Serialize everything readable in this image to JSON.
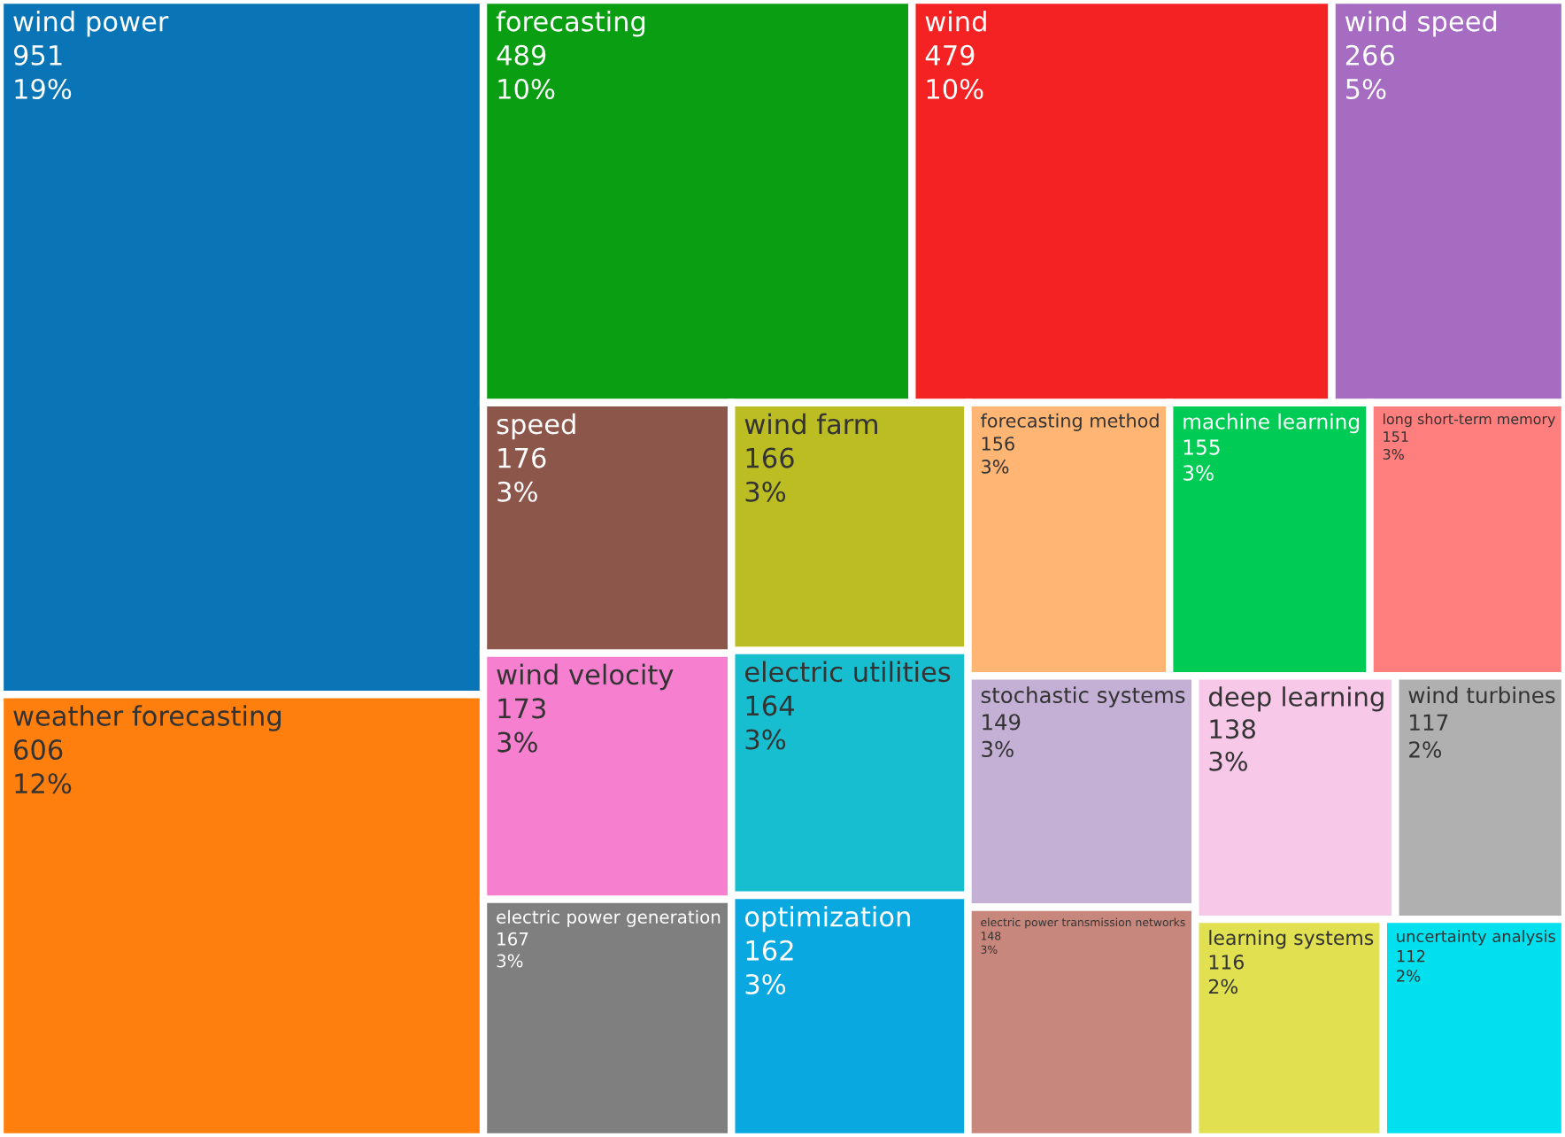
{
  "chart_data": {
    "type": "other",
    "categories": [
      "wind power",
      "weather forecasting",
      "forecasting",
      "wind",
      "wind speed",
      "speed",
      "wind velocity",
      "electric power generation",
      "wind farm",
      "electric utilities",
      "optimization",
      "forecasting method",
      "machine learning",
      "long short-term memory",
      "stochastic systems",
      "electric power transmission networks",
      "deep learning",
      "wind turbines",
      "learning systems",
      "uncertainty analysis"
    ],
    "values": [
      951,
      606,
      489,
      479,
      266,
      176,
      173,
      167,
      166,
      164,
      162,
      156,
      155,
      151,
      149,
      148,
      138,
      117,
      116,
      112
    ],
    "annotations": [
      "19%",
      "12%",
      "10%",
      "10%",
      "5%",
      "3%",
      "3%",
      "3%",
      "3%",
      "3%",
      "3%",
      "3%",
      "3%",
      "3%",
      "3%",
      "3%",
      "3%",
      "2%",
      "2%",
      "2%"
    ],
    "data_labels": true,
    "colors": [
      "#0a75b6",
      "#ff7f0e",
      "#0a9e12",
      "#f42222",
      "#a56cc1",
      "#8c564b",
      "#f77fcf",
      "#7f7f7f",
      "#bcbd22",
      "#17becf",
      "#0aa8e0",
      "#ffb574",
      "#00cc55",
      "#ff7f7f",
      "#c5b0d5",
      "#c7877c",
      "#f8c8e8",
      "#b0b0b0",
      "#e0e050",
      "#00e0ee"
    ]
  }
}
